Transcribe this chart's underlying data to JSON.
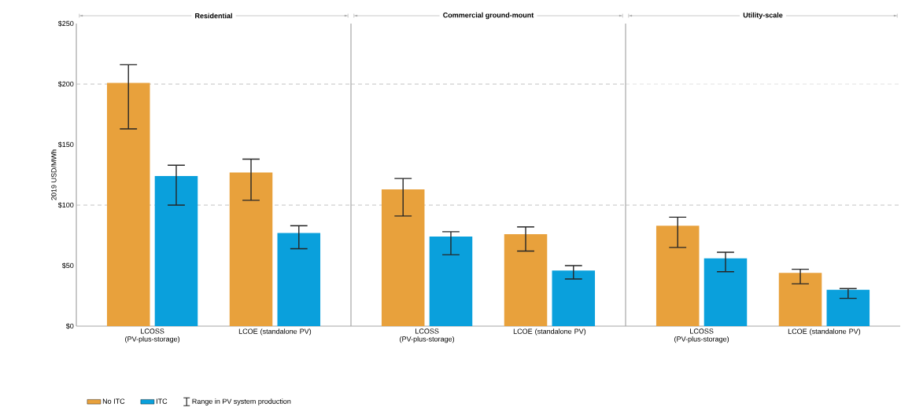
{
  "chart_data": [
    {
      "type": "bar",
      "title": "Residential",
      "ylabel": "2019 USD/MWh",
      "categories": [
        "LCOSS (PV-plus-storage)",
        "LCOE (standalone PV)"
      ],
      "series": [
        {
          "name": "No ITC",
          "color": "#e8a13c",
          "values": [
            201,
            127
          ],
          "errors": [
            [
              163,
              216
            ],
            [
              104,
              138
            ]
          ]
        },
        {
          "name": "ITC",
          "color": "#0aa0dc",
          "values": [
            124,
            77
          ],
          "errors": [
            [
              100,
              133
            ],
            [
              64,
              83
            ]
          ]
        }
      ],
      "ylim": [
        0,
        250
      ],
      "yticks": [
        {
          "value": 0,
          "label": "$0"
        },
        {
          "value": 50,
          "label": "$50"
        },
        {
          "value": 100,
          "label": "$100"
        },
        {
          "value": 150,
          "label": "$150"
        },
        {
          "value": 200,
          "label": "$200"
        },
        {
          "value": 250,
          "label": "$250"
        }
      ],
      "ref_lines": [
        {
          "axis": "y",
          "value": 100,
          "line_style": "dashed"
        },
        {
          "axis": "y",
          "value": 200,
          "line_style": "dashed"
        }
      ],
      "legend": "bottom left",
      "annotations": [
        "Range in PV system production"
      ]
    },
    {
      "type": "bar",
      "title": "Commercial ground-mount",
      "categories": [
        "LCOSS (PV-plus-storage)",
        "LCOE (standalone PV)"
      ],
      "series": [
        {
          "color": "#e8a13c",
          "values": [
            113,
            76
          ],
          "errors": [
            [
              91,
              122
            ],
            [
              62,
              82
            ]
          ]
        },
        {
          "color": "#0aa0dc",
          "values": [
            74,
            46
          ],
          "errors": [
            [
              59,
              78
            ],
            [
              39,
              50
            ]
          ]
        }
      ],
      "ylim": [
        0,
        250
      ],
      "tick_labels": "x",
      "ref_lines": [
        {
          "axis": "y",
          "value": 100,
          "line_style": "dashed"
        },
        {
          "axis": "y",
          "value": 200,
          "line_style": "dashed"
        }
      ]
    },
    {
      "type": "bar",
      "title": "Utility-scale",
      "categories": [
        "LCOSS (PV-plus-storage)",
        "LCOE (standalone PV)"
      ],
      "series": [
        {
          "color": "#e8a13c",
          "values": [
            83,
            44
          ],
          "errors": [
            [
              65,
              90
            ],
            [
              35,
              47
            ]
          ]
        },
        {
          "color": "#0aa0dc",
          "values": [
            56,
            30
          ],
          "errors": [
            [
              45,
              61
            ],
            [
              23,
              31
            ]
          ]
        }
      ],
      "ylim": [
        0,
        250
      ],
      "tick_labels": "x",
      "ref_lines": [
        {
          "axis": "y",
          "value": 100,
          "line_style": "dashed"
        },
        {
          "axis": "y",
          "value": 200,
          "line_style": "dashed"
        }
      ]
    }
  ]
}
